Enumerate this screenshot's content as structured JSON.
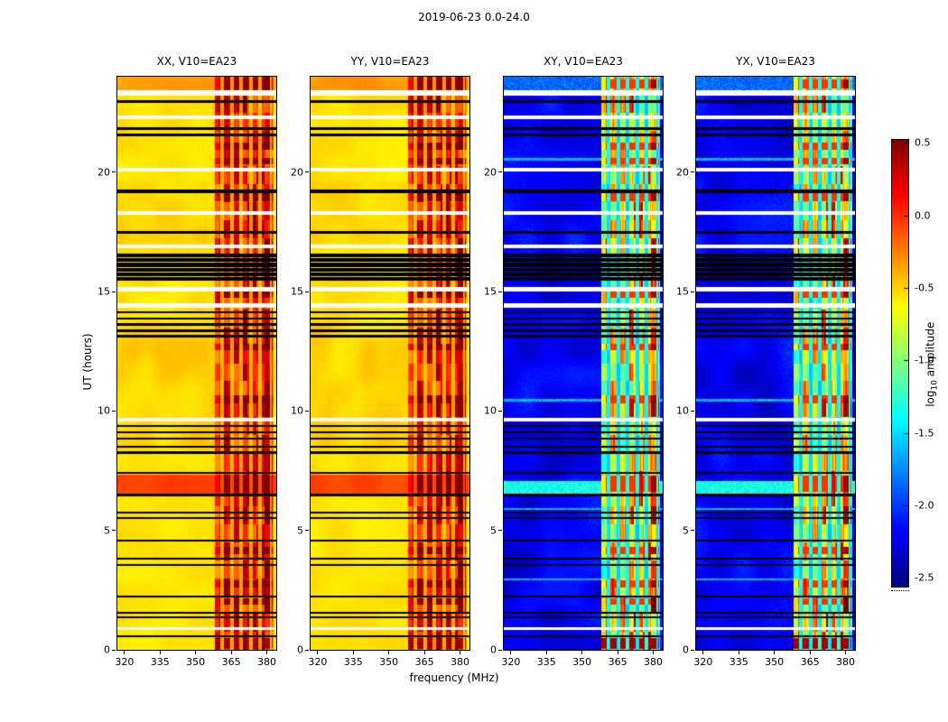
{
  "figure": {
    "title": "2019-06-23 0.0-24.0",
    "background": "#ffffff"
  },
  "chart_data": {
    "type": "heatmap",
    "title": "2019-06-23 0.0-24.0",
    "xlabel": "frequency (MHz)",
    "ylabel": "UT (hours)",
    "xlim": [
      317,
      384
    ],
    "ylim": [
      0,
      24
    ],
    "xticks": [
      "320",
      "335",
      "350",
      "365",
      "380"
    ],
    "yticks": [
      "0",
      "5",
      "10",
      "15",
      "20"
    ],
    "colormap": "jet",
    "value_range": [
      -2.56,
      0.52
    ],
    "colorbar": {
      "label_prefix": "log",
      "label_sub": "10",
      "label_suffix": " amplitude",
      "ticks": [
        "0.5",
        "0.0",
        "-0.5",
        "-1.0",
        "-1.5",
        "-2.0",
        "-2.5"
      ]
    },
    "panels": [
      {
        "id": "xx",
        "title": "XX, V10=EA23",
        "kind": "auto",
        "base_level": -0.6,
        "seed": 1
      },
      {
        "id": "yy",
        "title": "YY, V10=EA23",
        "kind": "auto",
        "base_level": -0.6,
        "seed": 2
      },
      {
        "id": "xy",
        "title": "XY, V10=EA23",
        "kind": "cross",
        "base_level": -2.4,
        "seed": 3
      },
      {
        "id": "yx",
        "title": "YX, V10=EA23",
        "kind": "cross",
        "base_level": -2.4,
        "seed": 4
      }
    ],
    "rfi_band": {
      "f_start": 358,
      "f_end": 383,
      "period_mhz": 4,
      "strong_extra": [
        379,
        381.5
      ],
      "auto_floor": -0.55,
      "auto_gain": 1.0,
      "cross_floor": -1.7,
      "cross_gain": 1.6,
      "block_hours": 0.75
    },
    "hot_rows": [
      [
        1.9,
        2.15
      ],
      [
        2.6,
        2.9
      ],
      [
        4.0,
        4.3
      ],
      [
        6.6,
        7.3
      ],
      [
        10.3,
        10.65
      ],
      [
        12.55,
        12.8
      ],
      [
        14.75,
        15.0
      ],
      [
        18.8,
        19.15
      ],
      [
        20.35,
        20.6
      ],
      [
        20.95,
        21.25
      ],
      [
        23.5,
        23.9
      ]
    ],
    "bright_rows_auto": [
      [
        6.55,
        7.35,
        0.48
      ],
      [
        23.35,
        24.0,
        0.22
      ]
    ],
    "bright_rows_cross": [
      [
        6.55,
        7.05,
        -1.55
      ],
      [
        23.4,
        24.0,
        -2.05
      ]
    ],
    "light_rows_cross": [
      2.95,
      5.9,
      10.45,
      20.55
    ],
    "bottom_band_red": [
      0.05,
      0.5
    ],
    "flagged_black": [
      [
        0.52,
        0.6
      ],
      [
        1.32,
        1.4
      ],
      [
        1.52,
        1.58
      ],
      [
        2.18,
        2.26
      ],
      [
        3.52,
        3.6
      ],
      [
        3.78,
        3.86
      ],
      [
        4.52,
        4.6
      ],
      [
        5.48,
        5.56
      ],
      [
        5.72,
        5.8
      ],
      [
        6.42,
        6.52
      ],
      [
        7.38,
        7.46
      ],
      [
        8.22,
        8.32
      ],
      [
        8.48,
        8.56
      ],
      [
        8.82,
        8.9
      ],
      [
        9.08,
        9.16
      ],
      [
        9.32,
        9.42
      ],
      [
        13.08,
        13.18
      ],
      [
        13.32,
        13.42
      ],
      [
        13.58,
        13.68
      ],
      [
        13.82,
        13.92
      ],
      [
        14.08,
        14.18
      ],
      [
        15.45,
        15.6
      ],
      [
        15.64,
        15.8
      ],
      [
        15.84,
        16.0
      ],
      [
        16.04,
        16.2
      ],
      [
        16.24,
        16.4
      ],
      [
        16.44,
        16.6
      ],
      [
        17.42,
        17.52
      ],
      [
        19.12,
        19.28
      ],
      [
        21.52,
        21.62
      ],
      [
        21.78,
        21.88
      ],
      [
        22.92,
        23.02
      ]
    ],
    "flagged_white": [
      [
        0.84,
        0.94
      ],
      [
        9.58,
        9.72
      ],
      [
        14.32,
        14.52
      ],
      [
        15.02,
        15.18
      ],
      [
        16.82,
        16.98
      ],
      [
        18.22,
        18.38
      ],
      [
        20.02,
        20.18
      ],
      [
        22.22,
        22.38
      ],
      [
        23.22,
        23.42
      ]
    ]
  }
}
